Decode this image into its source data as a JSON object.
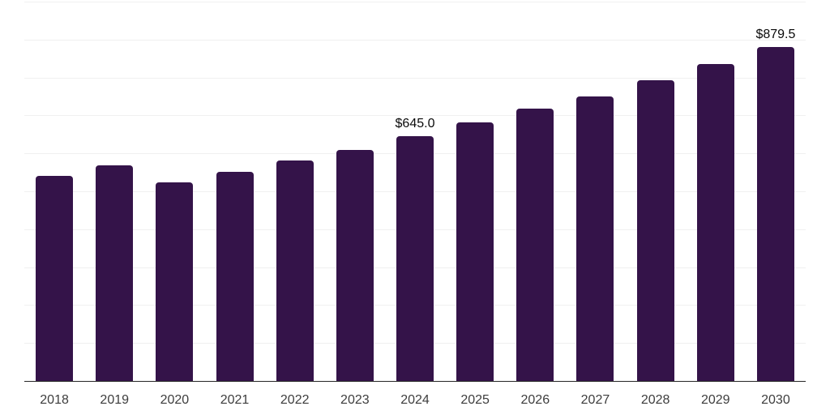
{
  "chart_data": {
    "type": "bar",
    "title": "",
    "xlabel": "",
    "ylabel": "",
    "categories": [
      "2018",
      "2019",
      "2020",
      "2021",
      "2022",
      "2023",
      "2024",
      "2025",
      "2026",
      "2027",
      "2028",
      "2029",
      "2030"
    ],
    "values": [
      540,
      569,
      524,
      552,
      581,
      609,
      645.0,
      681,
      717,
      751,
      792,
      835,
      879.5
    ],
    "value_labels": {
      "2024": "$645.0",
      "2030": "$879.5"
    },
    "ylim": [
      0,
      1000
    ],
    "gridline_step": 100,
    "grid": true,
    "legend": false,
    "y_tick_labels_visible": false,
    "colors": {
      "bar": "#341349",
      "axis_line": "#262626",
      "gridline": "#f0f0f0",
      "value_label": "#0a0a0a",
      "tick_label": "#3d3d3d",
      "background": "#ffffff"
    }
  }
}
